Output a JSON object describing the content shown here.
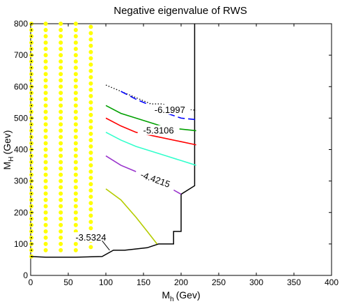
{
  "chart_data": {
    "type": "line",
    "title": "Negative eigenvalue of RWS",
    "xlabel": {
      "main": "M",
      "sub": "h",
      "unit": "(Gev)"
    },
    "ylabel": {
      "main": "M",
      "sub": "H",
      "unit": "(Gev)"
    },
    "xlim": [
      0,
      400
    ],
    "ylim": [
      0,
      800
    ],
    "xticks": [
      "0",
      "50",
      "100",
      "150",
      "200",
      "250",
      "300",
      "350",
      "400"
    ],
    "yticks": [
      "0",
      "100",
      "200",
      "300",
      "400",
      "500",
      "600",
      "700",
      "800"
    ],
    "grid": false,
    "colors": {
      "dots": "#ffff00",
      "boundary": "#000000",
      "dotted": "#000000",
      "blue": "#0000ff",
      "green": "#00a000",
      "red": "#ff0000",
      "cyan": "#33ffcc",
      "purple": "#9933cc",
      "olive": "#b5cc00"
    },
    "allowed_boundary": [
      [
        0,
        60
      ],
      [
        20,
        58
      ],
      [
        60,
        58
      ],
      [
        95,
        60
      ],
      [
        110,
        80
      ],
      [
        125,
        80
      ],
      [
        155,
        88
      ],
      [
        170,
        100
      ],
      [
        190,
        100
      ],
      [
        190,
        140
      ],
      [
        200,
        140
      ],
      [
        200,
        258
      ],
      [
        218,
        285
      ],
      [
        218,
        800
      ]
    ],
    "dot_columns_x": [
      1,
      20,
      40,
      60,
      80
    ],
    "dot_columns_y_range": [
      [
        60,
        800
      ],
      [
        80,
        800
      ],
      [
        80,
        800
      ],
      [
        80,
        800
      ],
      [
        90,
        800
      ]
    ],
    "series": [
      {
        "style": "dotted",
        "color": "dotted",
        "points": [
          [
            100,
            605
          ],
          [
            125,
            580
          ],
          [
            140,
            565
          ],
          [
            160,
            545
          ],
          [
            175,
            545
          ],
          [
            195,
            530
          ],
          [
            220,
            525
          ]
        ]
      },
      {
        "style": "dashed",
        "color": "blue",
        "points": [
          [
            120,
            585
          ],
          [
            140,
            560
          ],
          [
            160,
            540
          ],
          [
            175,
            520
          ],
          [
            200,
            500
          ],
          [
            220,
            495
          ]
        ]
      },
      {
        "style": "solid",
        "color": "green",
        "points": [
          [
            100,
            540
          ],
          [
            120,
            515
          ],
          [
            140,
            500
          ],
          [
            160,
            485
          ],
          [
            180,
            470
          ],
          [
            200,
            465
          ],
          [
            220,
            460
          ]
        ]
      },
      {
        "style": "solid",
        "color": "red",
        "points": [
          [
            100,
            500
          ],
          [
            120,
            475
          ],
          [
            140,
            455
          ],
          [
            160,
            445
          ],
          [
            180,
            435
          ],
          [
            200,
            425
          ],
          [
            220,
            415
          ]
        ]
      },
      {
        "style": "solid",
        "color": "cyan",
        "points": [
          [
            100,
            455
          ],
          [
            120,
            430
          ],
          [
            140,
            410
          ],
          [
            160,
            395
          ],
          [
            180,
            380
          ],
          [
            200,
            365
          ],
          [
            220,
            350
          ]
        ]
      },
      {
        "style": "solid",
        "color": "purple",
        "points": [
          [
            100,
            380
          ],
          [
            120,
            350
          ],
          [
            140,
            330
          ],
          [
            160,
            305
          ],
          [
            180,
            285
          ],
          [
            200,
            258
          ]
        ]
      },
      {
        "style": "solid",
        "color": "olive",
        "points": [
          [
            100,
            275
          ],
          [
            120,
            240
          ],
          [
            140,
            185
          ],
          [
            155,
            140
          ],
          [
            168,
            100
          ]
        ]
      }
    ],
    "annotations": [
      {
        "text": "-6.1997",
        "x": 185,
        "y": 521,
        "rotate": 0
      },
      {
        "text": "-5.3106",
        "x": 170,
        "y": 455,
        "rotate": 0
      },
      {
        "text": "-4.4215",
        "x": 165,
        "y": 300,
        "rotate": 20
      },
      {
        "text": "-3.5324",
        "x": 80,
        "y": 115,
        "rotate": 0
      }
    ],
    "leader_line": [
      [
        95,
        110
      ],
      [
        105,
        80
      ]
    ]
  }
}
